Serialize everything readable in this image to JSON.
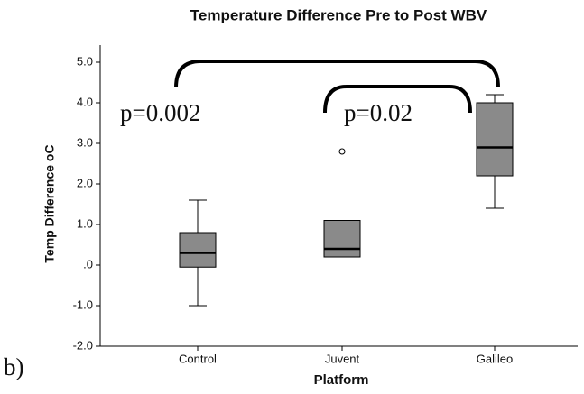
{
  "chart_data": {
    "type": "box",
    "title": "Temperature Difference Pre to Post WBV",
    "x_label": "Platform",
    "y_label": "Temp Difference oC",
    "categories": [
      "Control",
      "Juvent",
      "Galileo"
    ],
    "boxes": [
      {
        "low": -1.0,
        "q1": -0.05,
        "median": 0.3,
        "q3": 0.8,
        "high": 1.6,
        "outliers": []
      },
      {
        "low": 0.2,
        "q1": 0.2,
        "median": 0.4,
        "q3": 1.1,
        "high": 1.1,
        "outliers": [
          2.8
        ]
      },
      {
        "low": 1.4,
        "q1": 2.2,
        "median": 2.9,
        "q3": 4.0,
        "high": 4.2,
        "outliers": []
      }
    ],
    "color": "#8a8a8a",
    "ylim": [
      -2.0,
      5.0
    ],
    "yticks": [
      {
        "value": -2.0,
        "label": "-2.0"
      },
      {
        "value": -1.0,
        "label": "-1.0"
      },
      {
        "value": 0,
        "label": ".0"
      },
      {
        "value": 1.0,
        "label": "1.0"
      },
      {
        "value": 2.0,
        "label": "2.0"
      },
      {
        "value": 3.0,
        "label": "3.0"
      },
      {
        "value": 4.0,
        "label": "4.0"
      },
      {
        "value": 5.0,
        "label": "5.0"
      }
    ],
    "annotations": [
      "p=0.002",
      "p=0.02"
    ],
    "panel_label": "b)"
  }
}
